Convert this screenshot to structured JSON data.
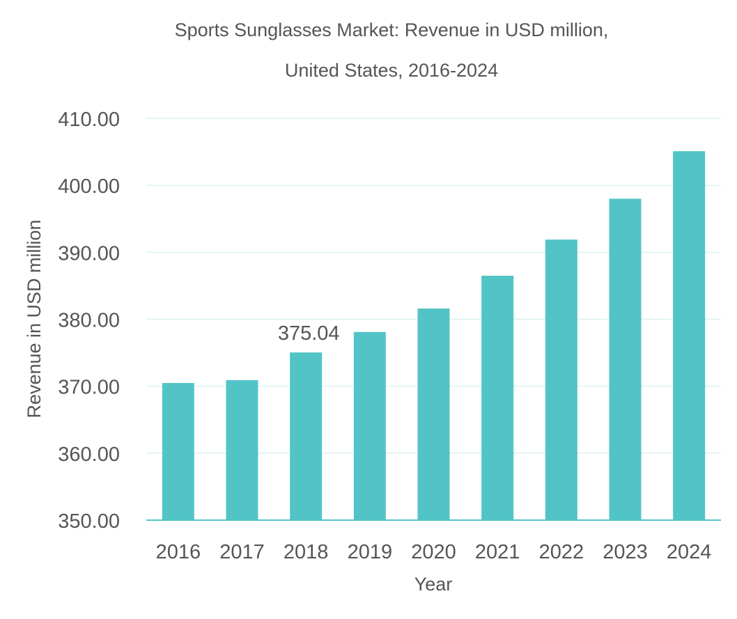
{
  "chart_data": {
    "type": "bar",
    "title_line1": "Sports Sunglasses Market: Revenue in USD million,",
    "title_line2": "United States, 2016-2024",
    "xlabel": "Year",
    "ylabel": "Revenue in USD million",
    "categories": [
      "2016",
      "2017",
      "2018",
      "2019",
      "2020",
      "2021",
      "2022",
      "2023",
      "2024"
    ],
    "values": [
      370.48,
      370.9,
      375.04,
      378.1,
      381.6,
      386.5,
      391.9,
      398.0,
      405.1
    ],
    "ylim": [
      350,
      410
    ],
    "yticks": [
      "350.00",
      "360.00",
      "370.00",
      "380.00",
      "390.00",
      "400.00",
      "410.00"
    ],
    "data_labels": [
      {
        "category": "2018",
        "text": "375.04"
      }
    ],
    "grid": true,
    "legend": "none",
    "colors": {
      "bar": "#52c4c6",
      "grid": "#dcf1ef",
      "axis": "#52c4c6"
    }
  }
}
